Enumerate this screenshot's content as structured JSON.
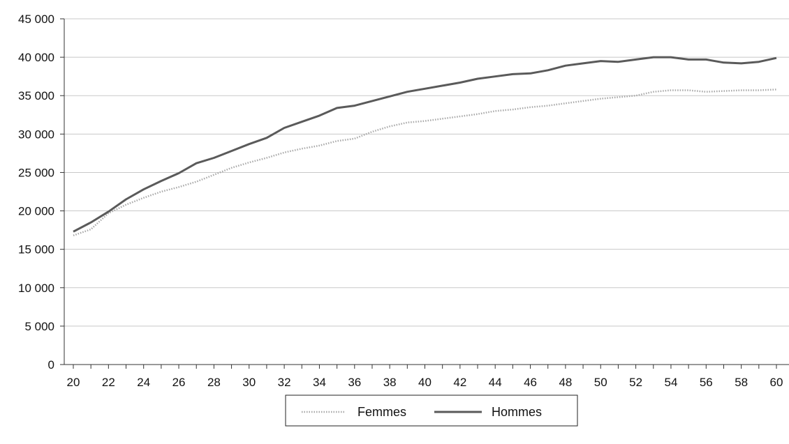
{
  "chart_data": {
    "type": "line",
    "x": [
      20,
      21,
      22,
      23,
      24,
      25,
      26,
      27,
      28,
      29,
      30,
      31,
      32,
      33,
      34,
      35,
      36,
      37,
      38,
      39,
      40,
      41,
      42,
      43,
      44,
      45,
      46,
      47,
      48,
      49,
      50,
      51,
      52,
      53,
      54,
      55,
      56,
      57,
      58,
      59,
      60
    ],
    "x_ticks": [
      "20",
      "22",
      "24",
      "26",
      "28",
      "30",
      "32",
      "34",
      "36",
      "38",
      "40",
      "42",
      "44",
      "46",
      "48",
      "50",
      "52",
      "54",
      "56",
      "58",
      "60"
    ],
    "x_tick_values": [
      20,
      22,
      24,
      26,
      28,
      30,
      32,
      34,
      36,
      38,
      40,
      42,
      44,
      46,
      48,
      50,
      52,
      54,
      56,
      58,
      60
    ],
    "y_ticks": [
      "0",
      "5 000",
      "10 000",
      "15 000",
      "20 000",
      "25 000",
      "30 000",
      "35 000",
      "40 000",
      "45 000"
    ],
    "y_tick_values": [
      0,
      5000,
      10000,
      15000,
      20000,
      25000,
      30000,
      35000,
      40000,
      45000
    ],
    "ylim": [
      0,
      45000
    ],
    "xlim": [
      20,
      60
    ],
    "grid": "horizontal",
    "legend_placement": "bottom-center",
    "series": [
      {
        "name": "Femmes",
        "style": "dotted",
        "color": "#a8a8a8",
        "values": [
          16800,
          17600,
          19700,
          20800,
          21700,
          22500,
          23100,
          23800,
          24700,
          25600,
          26300,
          26900,
          27600,
          28100,
          28500,
          29100,
          29400,
          30300,
          31000,
          31500,
          31700,
          32000,
          32300,
          32600,
          33000,
          33200,
          33500,
          33700,
          34000,
          34300,
          34600,
          34800,
          35000,
          35500,
          35700,
          35700,
          35500,
          35600,
          35700,
          35700,
          35800
        ]
      },
      {
        "name": "Hommes",
        "style": "solid",
        "color": "#5a5a5a",
        "values": [
          17300,
          18500,
          19900,
          21500,
          22800,
          23900,
          24900,
          26200,
          26900,
          27800,
          28700,
          29500,
          30800,
          31600,
          32400,
          33400,
          33700,
          34300,
          34900,
          35500,
          35900,
          36300,
          36700,
          37200,
          37500,
          37800,
          37900,
          38300,
          38900,
          39200,
          39500,
          39400,
          39700,
          40000,
          40000,
          39700,
          39700,
          39300,
          39200,
          39400,
          39900
        ]
      }
    ]
  }
}
